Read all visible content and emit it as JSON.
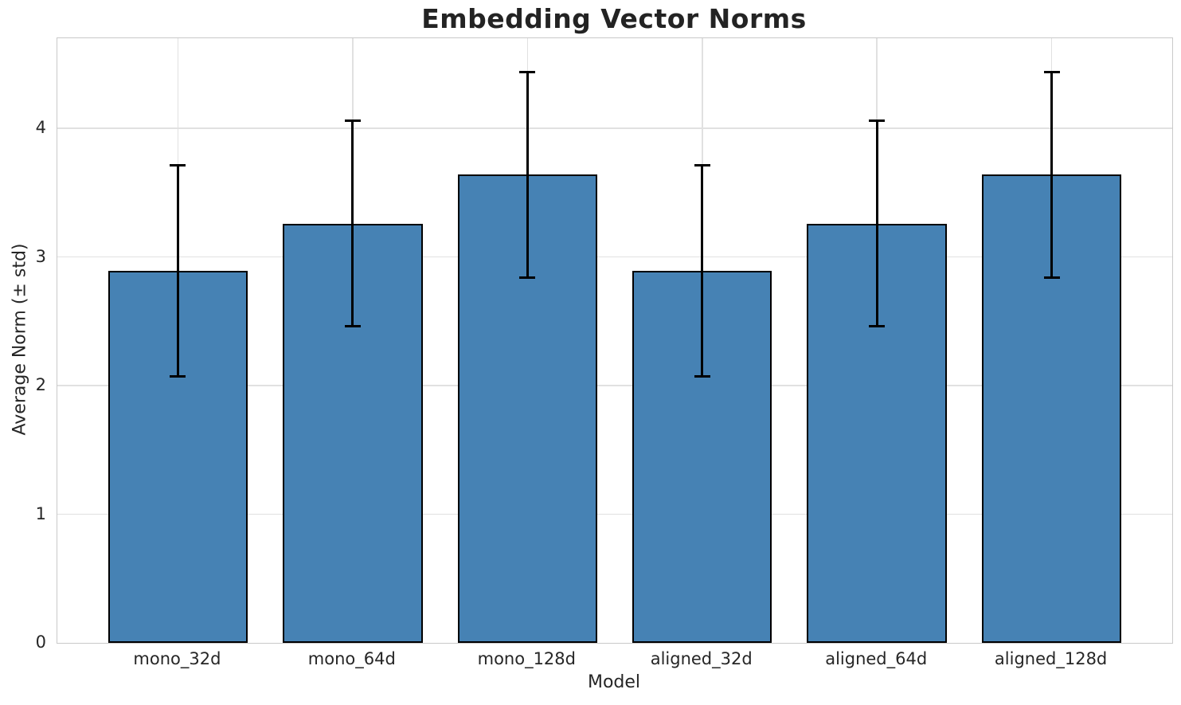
{
  "chart_data": {
    "type": "bar",
    "title": "Embedding Vector Norms",
    "xlabel": "Model",
    "ylabel": "Average Norm (± std)",
    "categories": [
      "mono_32d",
      "mono_64d",
      "mono_128d",
      "aligned_32d",
      "aligned_64d",
      "aligned_128d"
    ],
    "series": [
      {
        "name": "Average Norm",
        "values": [
          2.89,
          3.26,
          3.64,
          2.89,
          3.26,
          3.64
        ],
        "errors": [
          0.82,
          0.8,
          0.8,
          0.82,
          0.8,
          0.8
        ]
      }
    ],
    "error_bars": {
      "style": "± std, with caps",
      "upper": [
        3.71,
        4.06,
        4.44,
        3.71,
        4.06,
        4.44
      ],
      "lower": [
        2.07,
        2.46,
        2.84,
        2.07,
        2.46,
        2.84
      ]
    },
    "yticks": [
      0,
      1,
      2,
      3,
      4
    ],
    "ylim": [
      0,
      4.7
    ],
    "grid": "on (horizontal and vertical light gray gridlines)",
    "legend": "none",
    "colors": {
      "bar_fill": "#4682B4",
      "bar_edge": "#000000",
      "error_bar": "#000000",
      "grid": "#e1e1e1",
      "spine": "#c9c9c9",
      "text": "#262626"
    }
  }
}
